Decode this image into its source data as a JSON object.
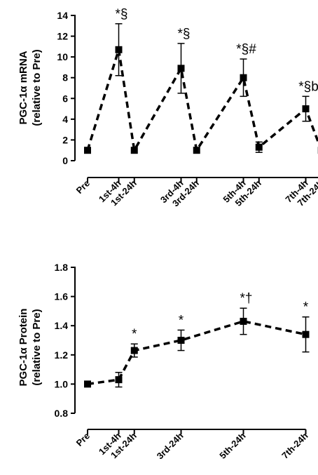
{
  "chart_data": [
    {
      "type": "line",
      "ylabel_lines": [
        "PGC-1α mRNA",
        "(relative to Pre)"
      ],
      "ylim": [
        0,
        14
      ],
      "yticks": [
        "0",
        "2",
        "4",
        "6",
        "8",
        "10",
        "12",
        "14"
      ],
      "grid": false,
      "x": [
        0,
        1,
        1.5,
        3,
        3.5,
        5,
        5.5,
        7,
        7.5
      ],
      "categories": [
        "Pre",
        "1st-4h",
        "1st-24h",
        "3rd-4h",
        "3rd-24h",
        "5th-4h",
        "5th-24h",
        "7th-4h",
        "7th-24h"
      ],
      "values": [
        1.0,
        10.7,
        1.0,
        8.9,
        1.0,
        8.0,
        1.3,
        5.0,
        1.0
      ],
      "errors": [
        0,
        2.5,
        0,
        2.4,
        0,
        1.8,
        0.5,
        1.2,
        0
      ],
      "annotations": [
        "",
        "*§",
        "",
        "*§",
        "",
        "*§#",
        "",
        "*§b",
        ""
      ]
    },
    {
      "type": "line",
      "ylabel_lines": [
        "PGC-1α Protein",
        "(relative to Pre)"
      ],
      "ylim": [
        0.8,
        1.8
      ],
      "yticks": [
        "0.8",
        "1.0",
        "1.2",
        "1.4",
        "1.6",
        "1.8"
      ],
      "grid": false,
      "x": [
        0,
        1,
        1.5,
        3,
        5,
        7
      ],
      "categories": [
        "Pre",
        "1st-4h",
        "1st-24h",
        "3rd-24h",
        "5th-24h",
        "7th-24h"
      ],
      "values": [
        1.0,
        1.03,
        1.23,
        1.3,
        1.43,
        1.34
      ],
      "errors": [
        0,
        0.05,
        0.045,
        0.07,
        0.09,
        0.12
      ],
      "annotations": [
        "",
        "",
        "*",
        "*",
        "*†",
        "*"
      ]
    }
  ]
}
